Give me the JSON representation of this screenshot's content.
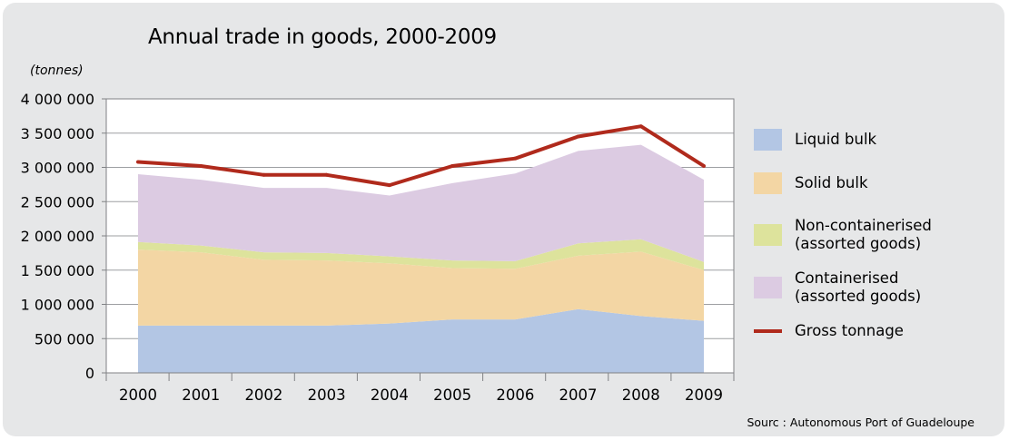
{
  "chart_data": {
    "type": "area",
    "title": "Annual trade in goods, 2000-2009",
    "ylabel": "(tonnes)",
    "xlabel": "",
    "ylim": [
      0,
      4000000
    ],
    "y_ticks": [
      0,
      500000,
      1000000,
      1500000,
      2000000,
      2500000,
      3000000,
      3500000,
      4000000
    ],
    "y_tick_labels": [
      "0",
      "500 000",
      "1 000 000",
      "1 500 000",
      "2 000 000",
      "2 500 000",
      "3 000 000",
      "3 500 000",
      "4 000 000"
    ],
    "categories": [
      "2000",
      "2001",
      "2002",
      "2003",
      "2004",
      "2005",
      "2006",
      "2007",
      "2008",
      "2009"
    ],
    "grid": true,
    "legend_position": "right",
    "stacked": true,
    "series": [
      {
        "name": "Liquid bulk",
        "kind": "area",
        "color": "#b3c6e4",
        "values": [
          690000,
          690000,
          690000,
          690000,
          720000,
          780000,
          780000,
          930000,
          830000,
          760000
        ]
      },
      {
        "name": "Solid bulk",
        "kind": "area",
        "color": "#f3d6a4",
        "values": [
          1110000,
          1070000,
          960000,
          950000,
          880000,
          750000,
          740000,
          780000,
          940000,
          740000
        ]
      },
      {
        "name": "Non-containerised\n(assorted goods)",
        "name_lines": [
          "Non-containerised",
          "(assorted goods)"
        ],
        "kind": "area",
        "color": "#dde39c",
        "values": [
          110000,
          100000,
          110000,
          110000,
          100000,
          110000,
          110000,
          180000,
          180000,
          120000
        ]
      },
      {
        "name": "Containerised\n(assorted goods)",
        "name_lines": [
          "Containerised",
          "(assorted goods)"
        ],
        "kind": "area",
        "color": "#dccbe2",
        "values": [
          990000,
          960000,
          940000,
          950000,
          890000,
          1130000,
          1280000,
          1350000,
          1380000,
          1200000
        ]
      },
      {
        "name": "Gross tonnage",
        "kind": "line",
        "color": "#b02a1c",
        "values": [
          3080000,
          3020000,
          2890000,
          2890000,
          2740000,
          3020000,
          3130000,
          3450000,
          3600000,
          3020000
        ]
      }
    ],
    "source": "Sourc : Autonomous Port of Guadeloupe"
  }
}
